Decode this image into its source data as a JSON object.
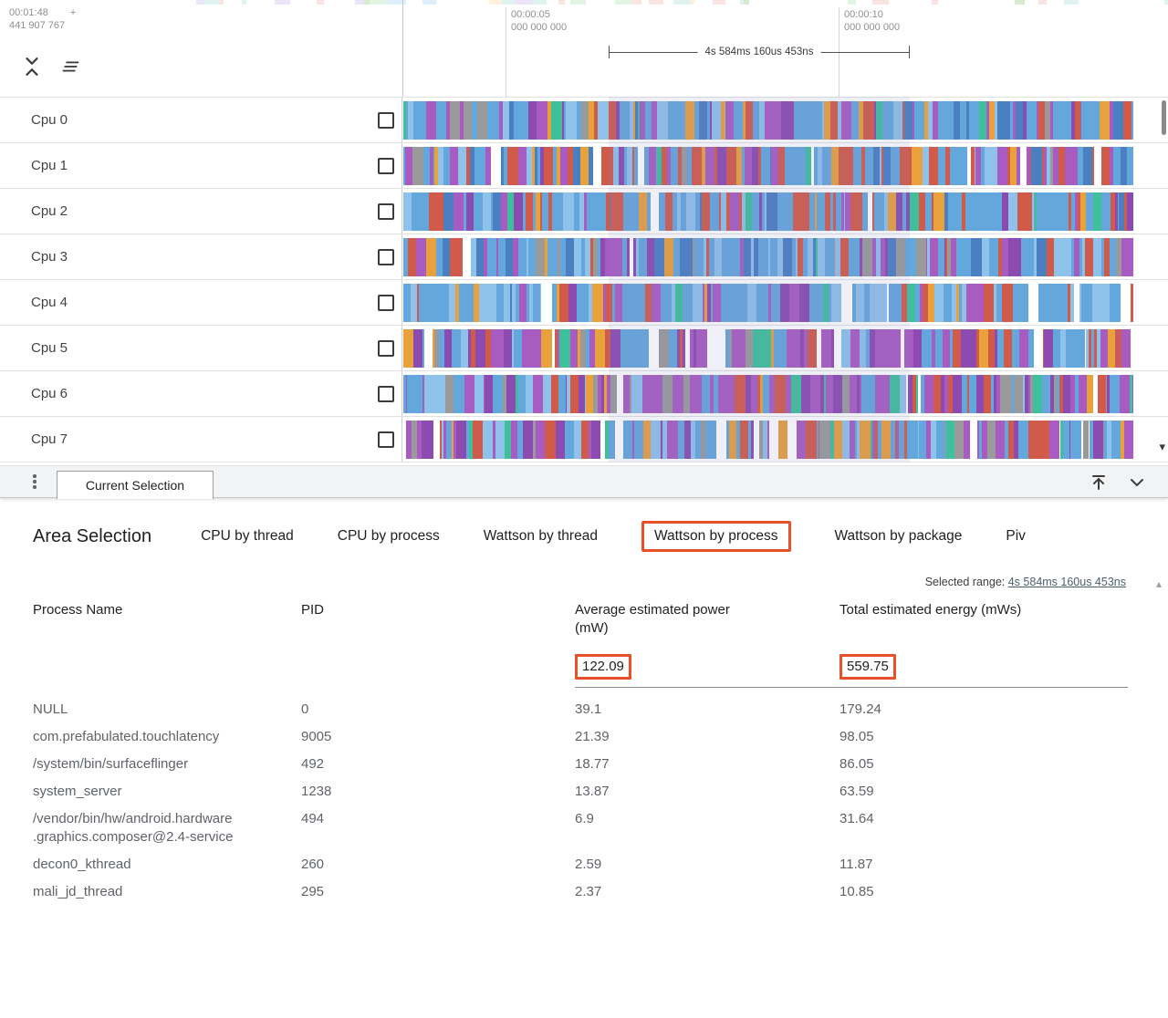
{
  "colors": {
    "accent_orange": "#e8502a",
    "selection_overlay": "rgba(128,128,190,0.13)",
    "palette": {
      "blue": "#64a7dd",
      "lightblue": "#8fc2ea",
      "deepblue": "#4a7fc1",
      "purple": "#a85cc1",
      "deeppurple": "#8b4bb0",
      "orange": "#e9a13c",
      "red": "#d05b4a",
      "teal": "#3fbf9a",
      "green": "#9ccc65",
      "gray": "#9a9a9a",
      "white": "#ffffff"
    }
  },
  "icons": {
    "check": "✓",
    "scroll_down": "▾",
    "scroll_up": "▴"
  },
  "timeline": {
    "clock_main": "00:01:48",
    "clock_plus": "+",
    "clock_offset": "441 907 767",
    "ticks": [
      {
        "time": "00:00:05",
        "sub": "000 000 000"
      },
      {
        "time": "00:00:10",
        "sub": "000 000 000"
      }
    ],
    "range_label": "4s 584ms 160us 453ns"
  },
  "tracks": [
    {
      "label": "Cpu 0",
      "checked": true
    },
    {
      "label": "Cpu 1",
      "checked": true
    },
    {
      "label": "Cpu 2",
      "checked": true
    },
    {
      "label": "Cpu 3",
      "checked": true
    },
    {
      "label": "Cpu 4",
      "checked": true
    },
    {
      "label": "Cpu 5",
      "checked": true
    },
    {
      "label": "Cpu 6",
      "checked": true
    },
    {
      "label": "Cpu 7",
      "checked": true
    }
  ],
  "drawer": {
    "tab_label": "Current Selection"
  },
  "selection": {
    "title": "Area Selection",
    "tabs": [
      {
        "label": "CPU by thread",
        "active": false
      },
      {
        "label": "CPU by process",
        "active": false
      },
      {
        "label": "Wattson by thread",
        "active": false
      },
      {
        "label": "Wattson by process",
        "active": true
      },
      {
        "label": "Wattson by package",
        "active": false
      },
      {
        "label": "Piv",
        "active": false
      }
    ],
    "selected_range_label": "Selected range:",
    "selected_range_value": "4s 584ms 160us 453ns"
  },
  "table": {
    "headers": [
      "Process Name",
      "PID",
      "Average estimated power (mW)",
      "Total estimated energy (mWs)"
    ],
    "totals": {
      "avg_power": "122.09",
      "total_energy": "559.75"
    },
    "rows": [
      [
        "NULL",
        "0",
        "39.1",
        "179.24"
      ],
      [
        "com.prefabulated.touchlatency",
        "9005",
        "21.39",
        "98.05"
      ],
      [
        "/system/bin/surfaceflinger",
        "492",
        "18.77",
        "86.05"
      ],
      [
        "system_server",
        "1238",
        "13.87",
        "63.59"
      ],
      [
        "/vendor/bin/hw/android.hardware.graphics.composer@2.4-service",
        "494",
        "6.9",
        "31.64"
      ],
      [
        "decon0_kthread",
        "260",
        "2.59",
        "11.87"
      ],
      [
        "mali_jd_thread",
        "295",
        "2.37",
        "10.85"
      ]
    ]
  }
}
